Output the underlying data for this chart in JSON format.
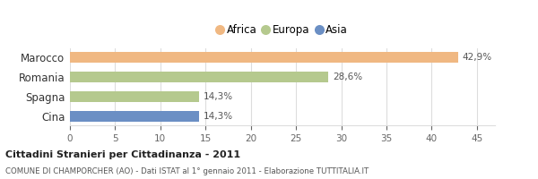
{
  "categories": [
    "Marocco",
    "Romania",
    "Spagna",
    "Cina"
  ],
  "values": [
    42.9,
    28.6,
    14.3,
    14.3
  ],
  "labels": [
    "42,9%",
    "28,6%",
    "14,3%",
    "14,3%"
  ],
  "bar_colors": [
    "#f0b882",
    "#b5c98e",
    "#b5c98e",
    "#6b8fc4"
  ],
  "legend": [
    {
      "label": "Africa",
      "color": "#f0b882"
    },
    {
      "label": "Europa",
      "color": "#b5c98e"
    },
    {
      "label": "Asia",
      "color": "#6b8fc4"
    }
  ],
  "xlim": [
    0,
    47
  ],
  "xticks": [
    0,
    5,
    10,
    15,
    20,
    25,
    30,
    35,
    40,
    45
  ],
  "title_bold": "Cittadini Stranieri per Cittadinanza - 2011",
  "subtitle": "COMUNE DI CHAMPORCHER (AO) - Dati ISTAT al 1° gennaio 2011 - Elaborazione TUTTITALIA.IT",
  "background_color": "#ffffff",
  "grid_color": "#dddddd"
}
